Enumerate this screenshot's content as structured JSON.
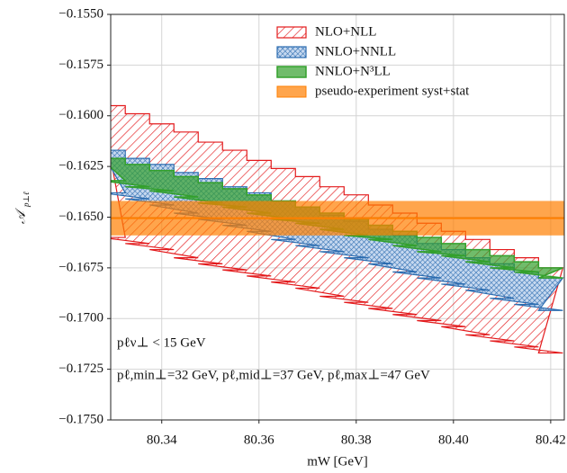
{
  "chart_data": {
    "type": "step-band",
    "xlabel": "mW [GeV]",
    "ylabel": "𝒜",
    "ylabel_sub": "p⊥ℓ",
    "xlim": [
      80.3295,
      80.4228
    ],
    "ylim": [
      -0.175,
      -0.155
    ],
    "xticks": [
      80.34,
      80.36,
      80.38,
      {
        "value": 80.4,
        "label": "80.40"
      },
      80.42
    ],
    "yticks": [
      {
        "value": -0.155,
        "label": "−0.1550"
      },
      {
        "value": -0.1575,
        "label": "−0.1575"
      },
      {
        "value": -0.16,
        "label": "−0.1600"
      },
      {
        "value": -0.1625,
        "label": "−0.1625"
      },
      {
        "value": -0.165,
        "label": "−0.1650"
      },
      {
        "value": -0.1675,
        "label": "−0.1675"
      },
      {
        "value": -0.17,
        "label": "−0.1700"
      },
      {
        "value": -0.1725,
        "label": "−0.1725"
      },
      {
        "value": -0.175,
        "label": "−0.1750"
      }
    ],
    "grid": true,
    "x": [
      80.33,
      80.335,
      80.34,
      80.345,
      80.35,
      80.355,
      80.36,
      80.365,
      80.37,
      80.375,
      80.38,
      80.385,
      80.39,
      80.395,
      80.4,
      80.405,
      80.41,
      80.415,
      80.42
    ],
    "series": [
      {
        "name": "NLO+NLL",
        "color": "#e31a1c",
        "style": "hatch",
        "upper": [
          -0.1595,
          -0.1599,
          -0.1604,
          -0.1608,
          -0.1613,
          -0.1617,
          -0.1622,
          -0.1626,
          -0.163,
          -0.1635,
          -0.1639,
          -0.1644,
          -0.1648,
          -0.1653,
          -0.1657,
          -0.1661,
          -0.1666,
          -0.167,
          -0.1675
        ],
        "lower": [
          -0.166,
          -0.1663,
          -0.1666,
          -0.167,
          -0.1673,
          -0.1676,
          -0.1679,
          -0.1682,
          -0.1685,
          -0.1689,
          -0.1692,
          -0.1695,
          -0.1698,
          -0.1701,
          -0.1704,
          -0.1708,
          -0.1711,
          -0.1714,
          -0.1717
        ]
      },
      {
        "name": "NNLO+NNLL",
        "color": "#2b6cb0",
        "style": "cross",
        "upper": [
          -0.1617,
          -0.1621,
          -0.1624,
          -0.1628,
          -0.1631,
          -0.1635,
          -0.1638,
          -0.1642,
          -0.1645,
          -0.1649,
          -0.1652,
          -0.1656,
          -0.1659,
          -0.1663,
          -0.1666,
          -0.167,
          -0.1673,
          -0.1677,
          -0.168
        ],
        "lower": [
          -0.1638,
          -0.1641,
          -0.1644,
          -0.1648,
          -0.1651,
          -0.1654,
          -0.1657,
          -0.1661,
          -0.1664,
          -0.1667,
          -0.167,
          -0.1673,
          -0.1677,
          -0.168,
          -0.1683,
          -0.1686,
          -0.169,
          -0.1693,
          -0.1696
        ]
      },
      {
        "name": "NNLO+N³LL",
        "color": "#33a02c",
        "style": "solid",
        "upper": [
          -0.1621,
          -0.1624,
          -0.1627,
          -0.163,
          -0.1633,
          -0.1636,
          -0.1639,
          -0.1642,
          -0.1645,
          -0.1648,
          -0.1651,
          -0.1654,
          -0.1657,
          -0.166,
          -0.1663,
          -0.1666,
          -0.1669,
          -0.1672,
          -0.1675
        ],
        "lower": [
          -0.1632,
          -0.1635,
          -0.1637,
          -0.164,
          -0.1643,
          -0.1645,
          -0.1648,
          -0.1651,
          -0.1653,
          -0.1656,
          -0.1659,
          -0.1661,
          -0.1664,
          -0.1667,
          -0.1669,
          -0.1672,
          -0.1675,
          -0.1677,
          -0.168
        ]
      },
      {
        "name": "pseudo-experiment syst+stat",
        "color": "#ff7f00",
        "style": "flat",
        "upper": -0.1642,
        "lower": -0.1659,
        "center": -0.16505
      }
    ],
    "annotations": [
      "pℓν⊥ < 15 GeV",
      "pℓ,min⊥=32 GeV, pℓ,mid⊥=37 GeV, pℓ,max⊥=47 GeV"
    ]
  }
}
